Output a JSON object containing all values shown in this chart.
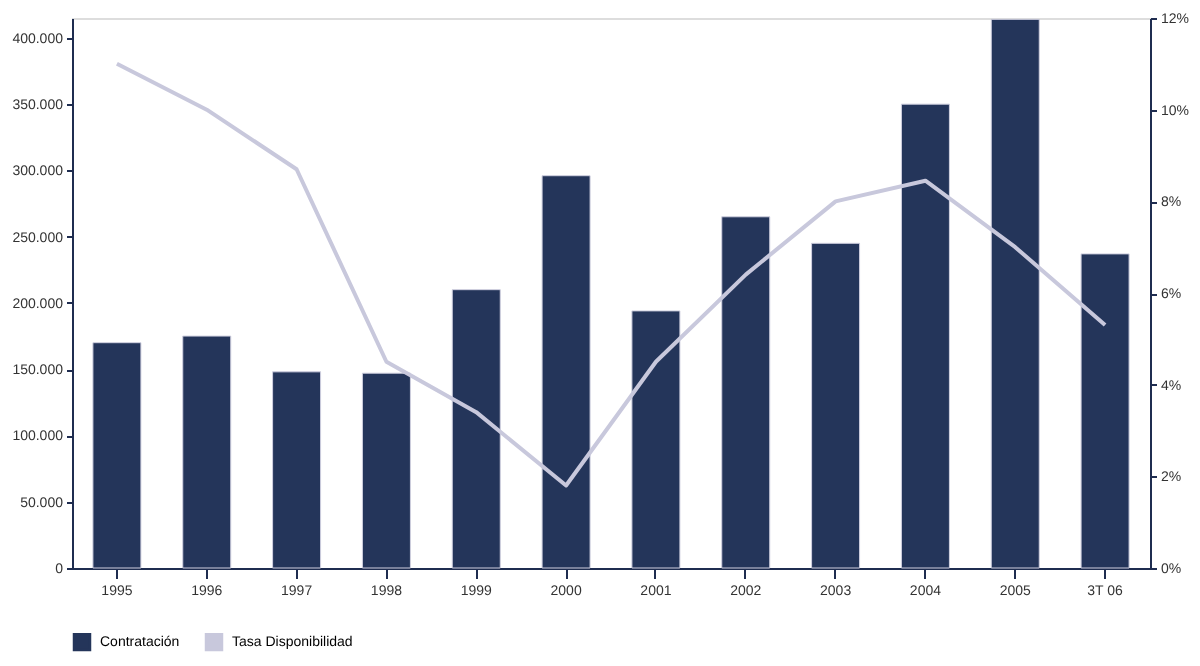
{
  "chart_data": {
    "type": "bar",
    "categories": [
      "1995",
      "1996",
      "1997",
      "1998",
      "1999",
      "2000",
      "2001",
      "2002",
      "2003",
      "2004",
      "2005",
      "3T 06"
    ],
    "series": [
      {
        "name": "Contratación",
        "color": "#24355a",
        "values": [
          170000,
          175000,
          148000,
          147000,
          210000,
          296000,
          194000,
          265000,
          245000,
          350000,
          414000,
          237000
        ]
      },
      {
        "name": "Tasa Disponibilidad",
        "type": "line",
        "axis": "y2",
        "color": "#c8c8dc",
        "values": [
          11.0,
          10.0,
          8.7,
          4.5,
          3.4,
          1.8,
          4.5,
          6.4,
          8.0,
          8.45,
          7.0,
          5.3
        ]
      }
    ],
    "ylim": [
      0,
      415000
    ],
    "yticks": [
      {
        "value": 0,
        "label": "0"
      },
      {
        "value": 50000,
        "label": "50.000"
      },
      {
        "value": 100000,
        "label": "100.000"
      },
      {
        "value": 150000,
        "label": "150.000"
      },
      {
        "value": 200000,
        "label": "200.000"
      },
      {
        "value": 250000,
        "label": "250.000"
      },
      {
        "value": 300000,
        "label": "300.000"
      },
      {
        "value": 350000,
        "label": "350.000"
      },
      {
        "value": 400000,
        "label": "400.000"
      }
    ],
    "y2lim": [
      0,
      12
    ],
    "y2ticks": [
      {
        "value": 0,
        "label": "0%"
      },
      {
        "value": 2,
        "label": "2%"
      },
      {
        "value": 4,
        "label": "4%"
      },
      {
        "value": 6,
        "label": "6%"
      },
      {
        "value": 8,
        "label": "8%"
      },
      {
        "value": 10,
        "label": "10%"
      },
      {
        "value": 12,
        "label": "12%"
      }
    ],
    "legend": "bottom",
    "grid": false,
    "marker": "none"
  }
}
